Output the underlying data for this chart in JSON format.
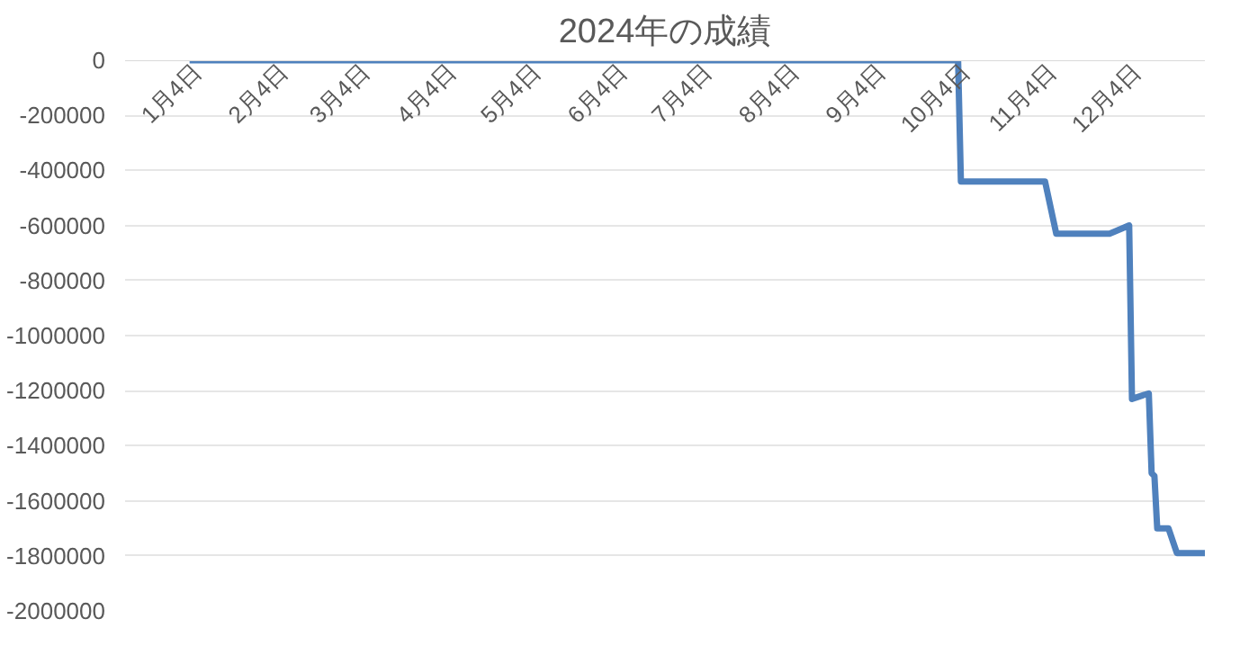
{
  "chart_data": {
    "type": "line",
    "title": "2024年の成績",
    "x": [
      "2024-01-04",
      "2024-10-04",
      "2024-10-05",
      "2024-11-04",
      "2024-11-08",
      "2024-11-27",
      "2024-12-04",
      "2024-12-05",
      "2024-12-11",
      "2024-12-12",
      "2024-12-13",
      "2024-12-14",
      "2024-12-18",
      "2024-12-21",
      "2024-12-31"
    ],
    "series": [
      {
        "color": "#4f81bd",
        "values": [
          0,
          0,
          -440000,
          -440000,
          -630000,
          -630000,
          -600000,
          -1230000,
          -1210000,
          -1500000,
          -1510000,
          -1700000,
          -1700000,
          -1790000,
          -1790000
        ]
      }
    ],
    "xlim": [
      "2023-12-12",
      "2024-12-31"
    ],
    "xticks": [
      {
        "value": "2024-01-04",
        "label": "1月4日"
      },
      {
        "value": "2024-02-04",
        "label": "2月4日"
      },
      {
        "value": "2024-03-04",
        "label": "3月4日"
      },
      {
        "value": "2024-04-04",
        "label": "4月4日"
      },
      {
        "value": "2024-05-04",
        "label": "5月4日"
      },
      {
        "value": "2024-06-04",
        "label": "6月4日"
      },
      {
        "value": "2024-07-04",
        "label": "7月4日"
      },
      {
        "value": "2024-08-04",
        "label": "8月4日"
      },
      {
        "value": "2024-09-04",
        "label": "9月4日"
      },
      {
        "value": "2024-10-04",
        "label": "10月4日"
      },
      {
        "value": "2024-11-04",
        "label": "11月4日"
      },
      {
        "value": "2024-12-04",
        "label": "12月4日"
      }
    ],
    "ylim": [
      -2000000,
      0
    ],
    "yticks": [
      0,
      -200000,
      -400000,
      -600000,
      -800000,
      -1000000,
      -1200000,
      -1400000,
      -1600000,
      -1800000,
      -2000000
    ],
    "grid": "y",
    "marker": "none",
    "line_style": "solid"
  }
}
